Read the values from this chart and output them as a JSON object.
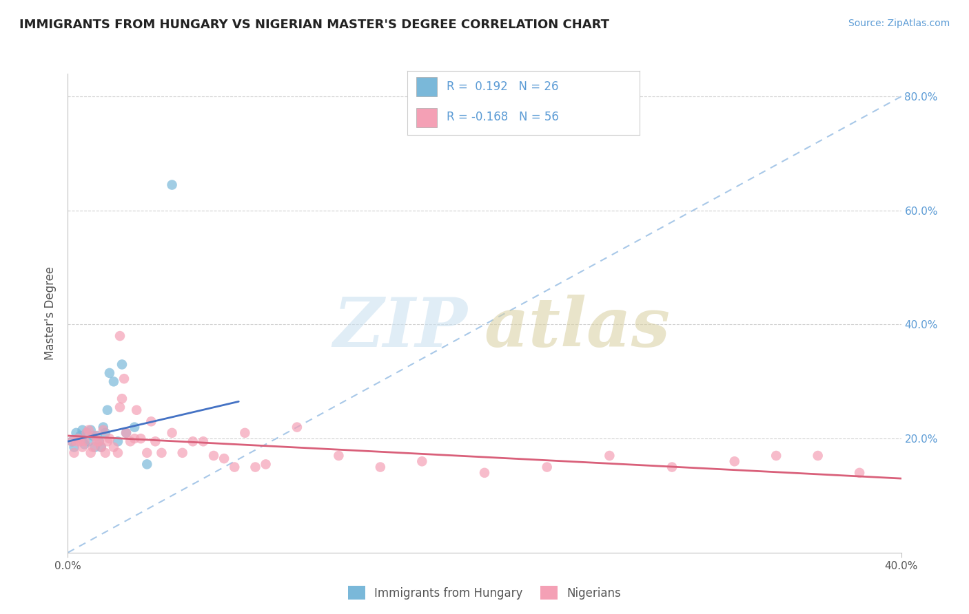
{
  "title": "IMMIGRANTS FROM HUNGARY VS NIGERIAN MASTER'S DEGREE CORRELATION CHART",
  "source_text": "Source: ZipAtlas.com",
  "ylabel": "Master's Degree",
  "xlim": [
    0.0,
    0.4
  ],
  "ylim": [
    0.0,
    0.84
  ],
  "x_ticks": [
    0.0,
    0.4
  ],
  "x_tick_labels": [
    "0.0%",
    "40.0%"
  ],
  "y_ticks_right": [
    0.2,
    0.4,
    0.6,
    0.8
  ],
  "y_tick_labels_right": [
    "20.0%",
    "40.0%",
    "60.0%",
    "80.0%"
  ],
  "blue_color": "#7ab8d9",
  "pink_color": "#f4a0b5",
  "blue_line_color": "#4472C4",
  "pink_line_color": "#d9607a",
  "dash_line_color": "#a8c8e8",
  "grid_color": "#d0d0d0",
  "background_color": "#ffffff",
  "hungary_x": [
    0.002,
    0.003,
    0.004,
    0.005,
    0.006,
    0.007,
    0.008,
    0.009,
    0.01,
    0.011,
    0.012,
    0.013,
    0.014,
    0.015,
    0.016,
    0.017,
    0.018,
    0.019,
    0.02,
    0.022,
    0.024,
    0.026,
    0.028,
    0.032,
    0.038,
    0.05
  ],
  "hungary_y": [
    0.195,
    0.185,
    0.21,
    0.2,
    0.205,
    0.215,
    0.19,
    0.21,
    0.195,
    0.215,
    0.205,
    0.185,
    0.205,
    0.195,
    0.185,
    0.22,
    0.21,
    0.25,
    0.315,
    0.3,
    0.195,
    0.33,
    0.21,
    0.22,
    0.155,
    0.645
  ],
  "nigeria_x": [
    0.002,
    0.003,
    0.004,
    0.005,
    0.006,
    0.007,
    0.008,
    0.009,
    0.01,
    0.011,
    0.012,
    0.013,
    0.014,
    0.015,
    0.016,
    0.017,
    0.018,
    0.019,
    0.02,
    0.022,
    0.024,
    0.025,
    0.026,
    0.028,
    0.03,
    0.032,
    0.035,
    0.038,
    0.04,
    0.042,
    0.045,
    0.05,
    0.055,
    0.065,
    0.075,
    0.085,
    0.095,
    0.11,
    0.13,
    0.15,
    0.17,
    0.2,
    0.23,
    0.26,
    0.29,
    0.32,
    0.34,
    0.36,
    0.38,
    0.025,
    0.027,
    0.033,
    0.06,
    0.07,
    0.08,
    0.09
  ],
  "nigeria_y": [
    0.195,
    0.175,
    0.195,
    0.2,
    0.195,
    0.185,
    0.195,
    0.21,
    0.215,
    0.175,
    0.185,
    0.205,
    0.195,
    0.195,
    0.185,
    0.215,
    0.175,
    0.195,
    0.2,
    0.185,
    0.175,
    0.38,
    0.27,
    0.21,
    0.195,
    0.2,
    0.2,
    0.175,
    0.23,
    0.195,
    0.175,
    0.21,
    0.175,
    0.195,
    0.165,
    0.21,
    0.155,
    0.22,
    0.17,
    0.15,
    0.16,
    0.14,
    0.15,
    0.17,
    0.15,
    0.16,
    0.17,
    0.17,
    0.14,
    0.255,
    0.305,
    0.25,
    0.195,
    0.17,
    0.15,
    0.15
  ],
  "hungary_line_x": [
    0.0,
    0.082
  ],
  "hungary_line_y": [
    0.195,
    0.265
  ],
  "nigeria_line_x": [
    0.0,
    0.4
  ],
  "nigeria_line_y": [
    0.205,
    0.13
  ]
}
